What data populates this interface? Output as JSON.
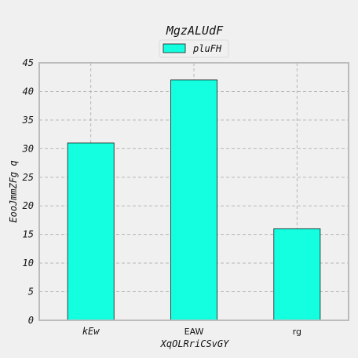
{
  "chart_data": {
    "type": "bar",
    "title": "MgzALUdF",
    "xlabel": "XqOLRriCSvGY",
    "ylabel": "EooJmmZFg q",
    "categories": [
      "kEw",
      "EAW",
      "rg"
    ],
    "series": [
      {
        "name": "pluFH",
        "values": [
          31,
          42,
          16
        ]
      }
    ],
    "ylim": [
      0,
      45
    ],
    "yticks": [
      0,
      5,
      10,
      15,
      20,
      25,
      30,
      35,
      40,
      45
    ],
    "grid": true,
    "legend_position": "top-center",
    "colors": {
      "bar_fill": "#14ffe0",
      "bar_edge": "#1a1a1a",
      "grid": "#b0b0b0",
      "axes_frame": "#bcbcbc",
      "background": "#f0f0f0"
    }
  }
}
